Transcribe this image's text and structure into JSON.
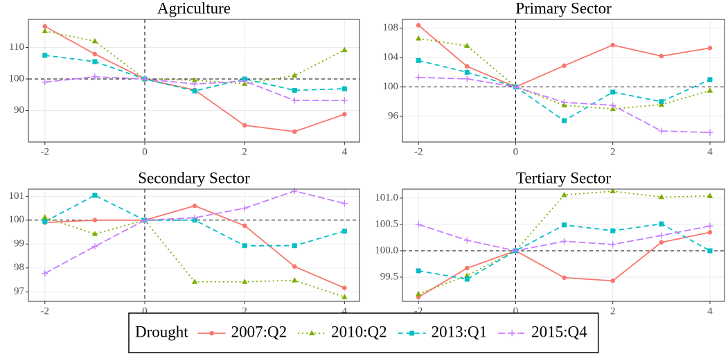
{
  "chart_data": [
    {
      "type": "line",
      "title": "Agriculture",
      "x": [
        -2,
        -1,
        0,
        1,
        2,
        3,
        4
      ],
      "xlim": [
        -2.33,
        4.3
      ],
      "xticks": [
        -2,
        0,
        2,
        4
      ],
      "ylim": [
        80,
        118.9
      ],
      "yticks": [
        90,
        100,
        110
      ],
      "grid": true,
      "hline": 100,
      "vline": 0,
      "series": [
        {
          "name": "2007:Q2",
          "color": "#F8766D",
          "marker": "circle",
          "linestyle": "solid",
          "values": [
            116.7,
            107.9,
            100,
            96.5,
            85.3,
            83.3,
            88.8
          ]
        },
        {
          "name": "2010:Q2",
          "color": "#7CAE00",
          "marker": "triangle",
          "linestyle": "dotted",
          "values": [
            115.2,
            112,
            100,
            99.6,
            98.5,
            101.1,
            109.2
          ]
        },
        {
          "name": "2013:Q1",
          "color": "#00BFC4",
          "marker": "square",
          "linestyle": "dashed",
          "values": [
            107.5,
            105.5,
            100,
            96.2,
            100,
            96.4,
            96.9
          ]
        },
        {
          "name": "2015:Q4",
          "color": "#C77CFF",
          "marker": "plus",
          "linestyle": "longdash",
          "values": [
            99,
            100.7,
            100,
            98.4,
            99.3,
            93.2,
            93.2
          ]
        }
      ]
    },
    {
      "type": "line",
      "title": "Primary Sector",
      "x": [
        -2,
        -1,
        0,
        1,
        2,
        3,
        4
      ],
      "xlim": [
        -2.33,
        4.3
      ],
      "xticks": [
        -2,
        0,
        2,
        4
      ],
      "ylim": [
        92.5,
        109.2
      ],
      "yticks": [
        96,
        100,
        104,
        108
      ],
      "grid": true,
      "hline": 100,
      "vline": 0,
      "series": [
        {
          "name": "2007:Q2",
          "color": "#F8766D",
          "marker": "circle",
          "linestyle": "solid",
          "values": [
            108.4,
            102.8,
            100,
            102.9,
            105.7,
            104.2,
            105.3
          ]
        },
        {
          "name": "2010:Q2",
          "color": "#7CAE00",
          "marker": "triangle",
          "linestyle": "dotted",
          "values": [
            106.6,
            105.6,
            100,
            97.5,
            97,
            97.6,
            99.5
          ]
        },
        {
          "name": "2013:Q1",
          "color": "#00BFC4",
          "marker": "square",
          "linestyle": "dashed",
          "values": [
            103.6,
            102,
            100,
            95.4,
            99.3,
            98,
            101
          ]
        },
        {
          "name": "2015:Q4",
          "color": "#C77CFF",
          "marker": "plus",
          "linestyle": "longdash",
          "values": [
            101.3,
            101.1,
            100,
            97.9,
            97.5,
            94,
            93.8
          ]
        }
      ]
    },
    {
      "type": "line",
      "title": "Secondary Sector",
      "x": [
        -2,
        -1,
        0,
        1,
        2,
        3,
        4
      ],
      "xlim": [
        -2.33,
        4.3
      ],
      "xticks": [
        -2,
        0,
        2,
        4
      ],
      "ylim": [
        96.6,
        101.3
      ],
      "yticks": [
        97,
        98,
        99,
        100,
        101
      ],
      "grid": true,
      "hline": 100,
      "vline": 0,
      "series": [
        {
          "name": "2007:Q2",
          "color": "#F8766D",
          "marker": "circle",
          "linestyle": "solid",
          "values": [
            99.9,
            100,
            100,
            100.6,
            99.77,
            98.06,
            97.16
          ]
        },
        {
          "name": "2010:Q2",
          "color": "#7CAE00",
          "marker": "triangle",
          "linestyle": "dotted",
          "values": [
            100.12,
            99.42,
            100,
            97.42,
            97.42,
            97.48,
            96.78
          ]
        },
        {
          "name": "2013:Q1",
          "color": "#00BFC4",
          "marker": "square",
          "linestyle": "dashed",
          "values": [
            99.94,
            101.04,
            100,
            100,
            98.93,
            98.93,
            99.54
          ]
        },
        {
          "name": "2015:Q4",
          "color": "#C77CFF",
          "marker": "plus",
          "linestyle": "longdash",
          "values": [
            97.77,
            98.9,
            100,
            100.1,
            100.5,
            101.22,
            100.7
          ]
        }
      ]
    },
    {
      "type": "line",
      "title": "Tertiary Sector",
      "x": [
        -2,
        -1,
        0,
        1,
        2,
        3,
        4
      ],
      "xlim": [
        -2.33,
        4.3
      ],
      "xticks": [
        -2,
        0,
        2,
        4
      ],
      "ylim": [
        99.04,
        101.17
      ],
      "yticks": [
        {
          "value": 99.5,
          "label": "99.5"
        },
        {
          "value": 100,
          "label": "100.0"
        },
        {
          "value": 100.5,
          "label": "100.5"
        },
        {
          "value": 101,
          "label": "101.0"
        }
      ],
      "grid": true,
      "hline": 100,
      "vline": 0,
      "series": [
        {
          "name": "2007:Q2",
          "color": "#F8766D",
          "marker": "circle",
          "linestyle": "solid",
          "values": [
            99.12,
            99.67,
            100,
            99.49,
            99.43,
            100.16,
            100.35
          ]
        },
        {
          "name": "2010:Q2",
          "color": "#7CAE00",
          "marker": "triangle",
          "linestyle": "dotted",
          "values": [
            99.18,
            99.53,
            100,
            101.06,
            101.13,
            101.02,
            101.04
          ]
        },
        {
          "name": "2013:Q1",
          "color": "#00BFC4",
          "marker": "square",
          "linestyle": "dashed",
          "values": [
            99.62,
            99.46,
            100,
            100.49,
            100.38,
            100.51,
            100
          ]
        },
        {
          "name": "2015:Q4",
          "color": "#C77CFF",
          "marker": "plus",
          "linestyle": "longdash",
          "values": [
            100.5,
            100.2,
            100,
            100.18,
            100.12,
            100.29,
            100.47
          ]
        }
      ]
    }
  ],
  "legend": {
    "title": "Drought",
    "position": "bottom"
  }
}
